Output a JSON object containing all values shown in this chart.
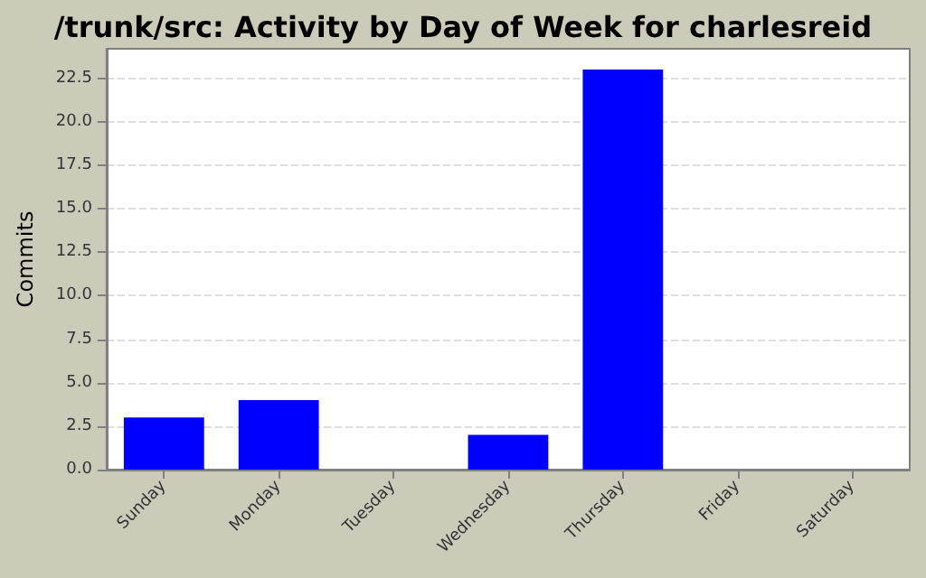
{
  "chart_data": {
    "type": "bar",
    "title": "/trunk/src: Activity by Day of Week for charlesreid",
    "ylabel": "Commits",
    "categories": [
      "Sunday",
      "Monday",
      "Tuesday",
      "Wednesday",
      "Thursday",
      "Friday",
      "Saturday"
    ],
    "values": [
      3,
      4,
      0,
      2,
      23,
      0,
      0
    ],
    "color": "#0000ff",
    "ylim": [
      0,
      24.2
    ],
    "yticks": [
      {
        "value": 0,
        "label": "0.0"
      },
      2.5,
      {
        "value": 5,
        "label": "5.0"
      },
      7.5,
      {
        "value": 10,
        "label": "10.0"
      },
      12.5,
      {
        "value": 15,
        "label": "15.0"
      },
      17.5,
      {
        "value": 20,
        "label": "20.0"
      },
      22.5
    ],
    "grid": "y"
  }
}
